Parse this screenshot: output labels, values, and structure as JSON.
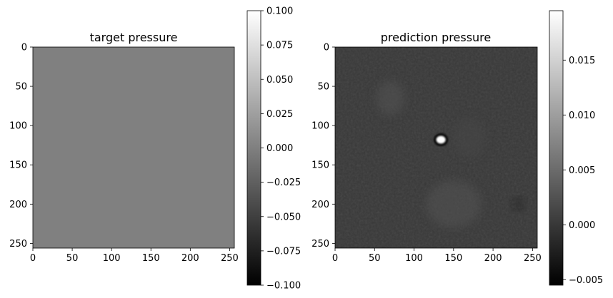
{
  "figure": {
    "background": "#ffffff"
  },
  "chart_data": [
    {
      "type": "heatmap",
      "title": "target pressure",
      "xlabel": "",
      "ylabel": "",
      "xlim": [
        0,
        256
      ],
      "ylim": [
        256,
        0
      ],
      "xticks": [
        0,
        50,
        100,
        150,
        200,
        250
      ],
      "xtick_labels": [
        "0",
        "50",
        "100",
        "150",
        "200",
        "250"
      ],
      "yticks": [
        0,
        50,
        100,
        150,
        200,
        250
      ],
      "ytick_labels": [
        "0",
        "50",
        "100",
        "150",
        "200",
        "250"
      ],
      "colormap": "gray",
      "uniform_value": 0.0,
      "field_color": "#808080",
      "colorbar": {
        "vmin": -0.1,
        "vmax": 0.1,
        "ticks": [
          0.1,
          0.075,
          0.05,
          0.025,
          0.0,
          -0.025,
          -0.05,
          -0.075,
          -0.1
        ],
        "tick_labels": [
          "0.100",
          "0.075",
          "0.050",
          "0.025",
          "0.000",
          "−0.025",
          "−0.050",
          "−0.075",
          "−0.100"
        ]
      }
    },
    {
      "type": "heatmap",
      "title": "prediction pressure",
      "xlabel": "",
      "ylabel": "",
      "xlim": [
        0,
        256
      ],
      "ylim": [
        256,
        0
      ],
      "xticks": [
        0,
        50,
        100,
        150,
        200,
        250
      ],
      "xtick_labels": [
        "0",
        "50",
        "100",
        "150",
        "200",
        "250"
      ],
      "yticks": [
        0,
        50,
        100,
        150,
        200,
        250
      ],
      "ytick_labels": [
        "0",
        "50",
        "100",
        "150",
        "200",
        "250"
      ],
      "colormap": "gray",
      "background_value": 0.0,
      "features": [
        {
          "name": "hot-spot",
          "x": 134,
          "y": 118,
          "rx": 6,
          "ry": 5,
          "value": 0.0195
        },
        {
          "name": "dark-ring",
          "x": 134,
          "y": 118,
          "rx": 9,
          "ry": 8,
          "value": -0.005
        },
        {
          "name": "faint-blob-upper-left",
          "x": 70,
          "y": 65,
          "rx": 18,
          "ry": 22,
          "value": 0.0025
        },
        {
          "name": "faint-blob-lower-mid",
          "x": 150,
          "y": 200,
          "rx": 35,
          "ry": 30,
          "value": 0.0025
        },
        {
          "name": "faint-blob-mid-right",
          "x": 170,
          "y": 115,
          "rx": 20,
          "ry": 25,
          "value": 0.0015
        },
        {
          "name": "dark-spot-lower-right",
          "x": 232,
          "y": 200,
          "rx": 6,
          "ry": 6,
          "value": -0.003
        }
      ],
      "colorbar": {
        "vmin": -0.0055,
        "vmax": 0.0195,
        "ticks": [
          0.015,
          0.01,
          0.005,
          0.0,
          -0.005
        ],
        "tick_labels": [
          "0.015",
          "0.010",
          "0.005",
          "0.000",
          "−0.005"
        ]
      }
    }
  ]
}
